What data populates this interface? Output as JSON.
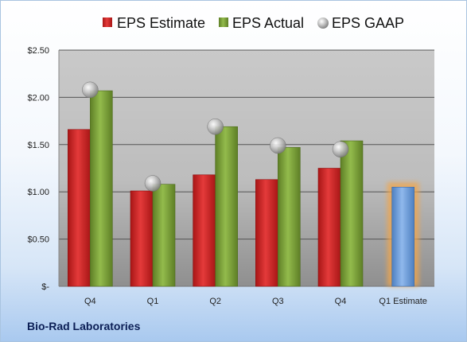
{
  "company": "Bio-Rad Laboratories",
  "colors": {
    "estimate": "#d62a2a",
    "actual": "#7fa63c",
    "gaap": "#a9a9a9",
    "future_estimate": "#6e9fd8",
    "future_glow": "#f3a64a"
  },
  "chart_data": {
    "type": "bar",
    "categories": [
      "Q4",
      "Q1",
      "Q2",
      "Q3",
      "Q4",
      "Q1 Estimate"
    ],
    "series": [
      {
        "name": "EPS Estimate",
        "values": [
          1.66,
          1.01,
          1.18,
          1.13,
          1.25,
          1.05
        ]
      },
      {
        "name": "EPS Actual",
        "values": [
          2.07,
          1.08,
          1.69,
          1.47,
          1.54,
          null
        ]
      },
      {
        "name": "EPS GAAP",
        "values": [
          2.08,
          1.09,
          1.69,
          1.49,
          1.45,
          null
        ]
      }
    ],
    "y_ticks": [
      "$-",
      "$0.50",
      "$1.00",
      "$1.50",
      "$2.00",
      "$2.50"
    ],
    "ylim": [
      0,
      2.5
    ],
    "grid": true,
    "legend_position": "top"
  }
}
